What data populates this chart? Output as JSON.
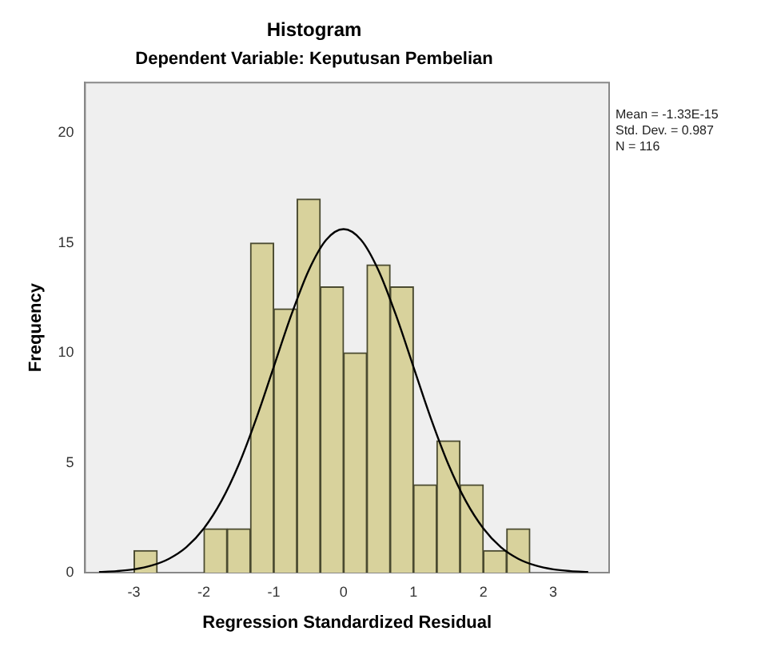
{
  "chart_data": {
    "type": "histogram",
    "title": "Histogram",
    "subtitle": "Dependent Variable: Keputusan Pembelian",
    "xlabel": "Regression Standardized Residual",
    "ylabel": "Frequency",
    "bins": [
      -3,
      -2.667,
      -2.333,
      -2,
      -1.667,
      -1.333,
      -1,
      -0.667,
      -0.333,
      0,
      0.333,
      0.667,
      1,
      1.333,
      1.667,
      2,
      2.333,
      2.667
    ],
    "values": [
      1,
      0,
      0,
      2,
      2,
      15,
      12,
      17,
      13,
      10,
      14,
      13,
      4,
      6,
      4,
      1,
      2
    ],
    "color": "#d8d29c",
    "series": [
      {
        "type": "line",
        "color": "#000000",
        "x": [
          -3.5,
          -3.25,
          -3,
          -2.75,
          -2.5,
          -2.25,
          -2,
          -1.75,
          -1.5,
          -1.25,
          -1,
          -0.75,
          -0.5,
          -0.25,
          0,
          0.25,
          0.5,
          0.75,
          1,
          1.25,
          1.5,
          1.75,
          2,
          2.25,
          2.5,
          2.75,
          3,
          3.25,
          3.5
        ],
        "values": [
          0.03,
          0.07,
          0.15,
          0.32,
          0.63,
          1.16,
          2.01,
          3.25,
          4.92,
          7.01,
          9.36,
          11.71,
          13.75,
          15.14,
          15.63,
          15.14,
          13.75,
          11.71,
          9.36,
          7.01,
          4.92,
          3.25,
          2.01,
          1.16,
          0.63,
          0.32,
          0.15,
          0.07,
          0.03
        ]
      }
    ],
    "xlim": [
      -3.7,
      3.8
    ],
    "xticks": [
      -3,
      -2,
      -1,
      0,
      1,
      2,
      3
    ],
    "ylim": [
      0,
      22.3
    ],
    "yticks": [
      0,
      5,
      10,
      15,
      20
    ],
    "grid": false,
    "legend": false,
    "marker": "none",
    "annotations": [
      "Mean = -1.33E-15",
      "Std. Dev. = 0.987",
      "N = 116"
    ]
  }
}
